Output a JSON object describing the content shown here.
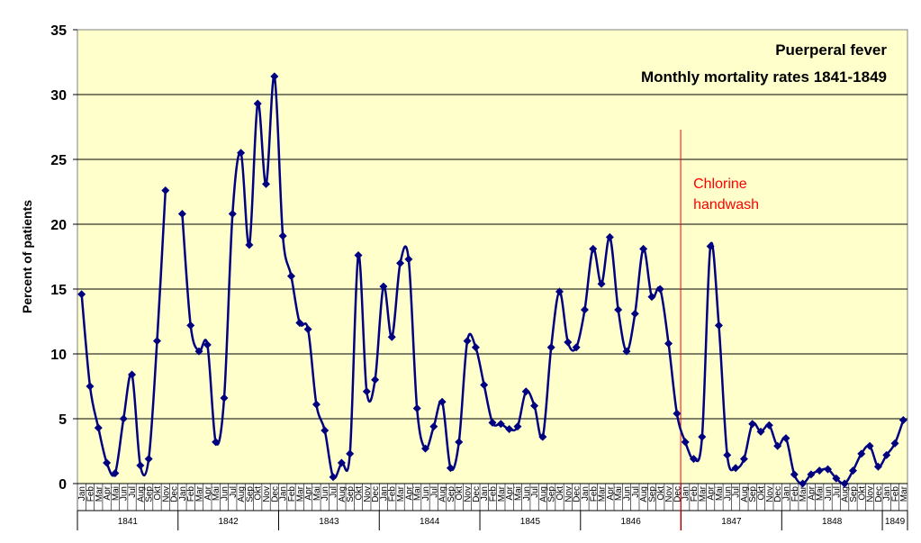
{
  "chart_data": {
    "type": "line",
    "title": "Puerperal fever",
    "subtitle": "Monthly mortality rates 1841-1849",
    "ylabel": "Percent of patients",
    "xlabel": "",
    "ylim": [
      0,
      35
    ],
    "yticks": [
      0,
      5,
      10,
      15,
      20,
      25,
      30,
      35
    ],
    "grid": true,
    "months": [
      "Jan",
      "Feb",
      "Mar",
      "Apr",
      "Mai",
      "Jun",
      "Jul",
      "Aug",
      "Sep",
      "Okt",
      "Nov",
      "Dec"
    ],
    "years": [
      "1841",
      "1842",
      "1843",
      "1844",
      "1845",
      "1846",
      "1847",
      "1848",
      "1849"
    ],
    "annotation": {
      "lines": [
        "Chlorine",
        "handwash"
      ],
      "x": "1847-May"
    },
    "colors": {
      "plot_bg": "#ffffcc",
      "line": "#000080",
      "grid": "#000000",
      "annotation": "#ff0000"
    },
    "series": [
      {
        "values": [
          14.6,
          7.5,
          4.3,
          1.6,
          0.8,
          5.0,
          8.4,
          1.4,
          1.9,
          11.0,
          22.6,
          null,
          20.8,
          12.2,
          10.2,
          10.7,
          3.2,
          6.6,
          20.8,
          25.5,
          18.4,
          29.3,
          23.1,
          31.4,
          19.1,
          16.0,
          12.4,
          11.9,
          6.1,
          4.1,
          0.5,
          1.6,
          2.3,
          17.6,
          7.1,
          8.0,
          15.2,
          11.3,
          17.0,
          17.3,
          5.8,
          2.7,
          4.4,
          6.3,
          1.2,
          3.2,
          11.0,
          10.5,
          7.6,
          4.7,
          4.6,
          4.2,
          4.4,
          7.1,
          6.0,
          3.6,
          10.5,
          14.8,
          10.9,
          10.5,
          13.4,
          18.1,
          15.4,
          19.0,
          13.4,
          10.2,
          13.1,
          18.1,
          14.4,
          15.0,
          10.8,
          5.4,
          3.2,
          1.9,
          3.6,
          18.3,
          12.2,
          2.2,
          1.2,
          1.9,
          4.6,
          4.0,
          4.5,
          2.9,
          3.5,
          0.7,
          0.0,
          0.7,
          1.0,
          1.1,
          0.4,
          0.0,
          1.0,
          2.3,
          2.9,
          1.3,
          2.2,
          3.1,
          4.9
        ]
      }
    ]
  }
}
